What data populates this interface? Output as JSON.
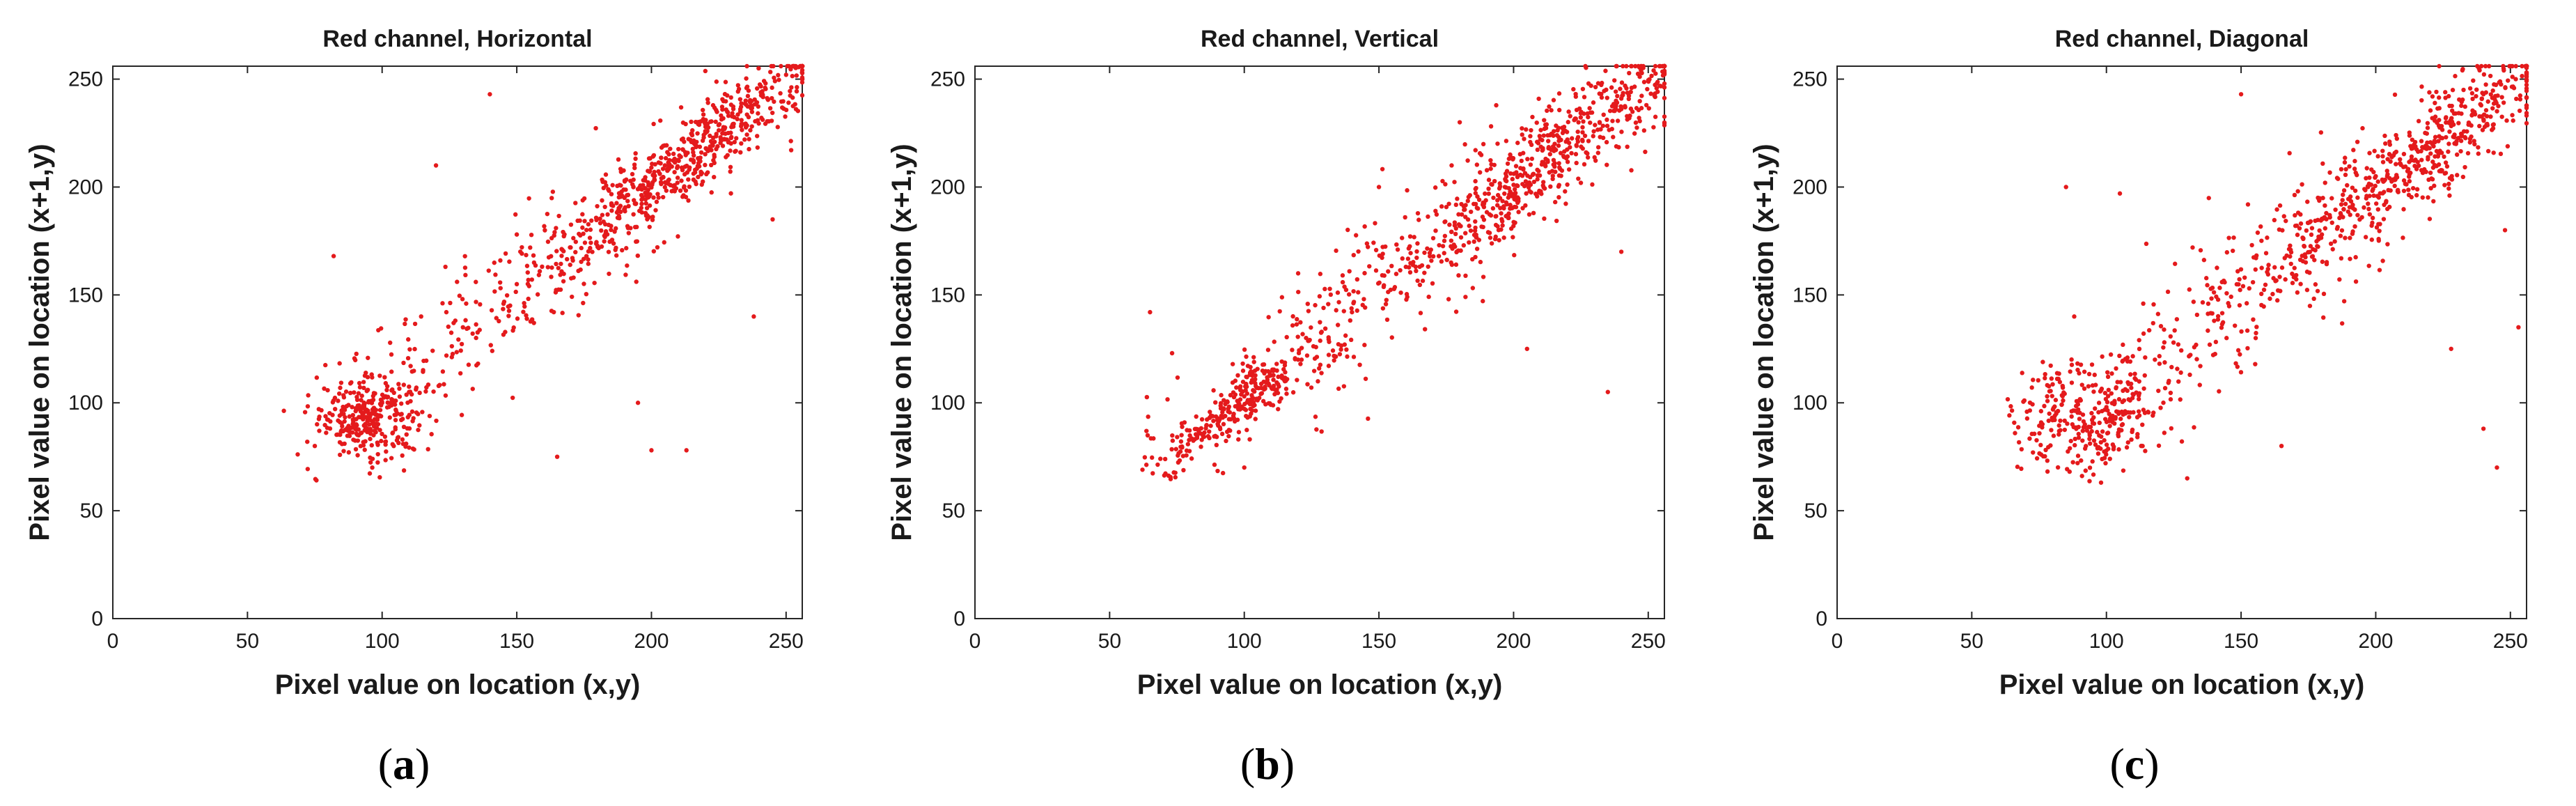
{
  "chart_data": [
    {
      "type": "scatter",
      "panel_label": "a",
      "title": "Red channel, Horizontal",
      "xlabel": "Pixel value on location (x,y)",
      "ylabel": "Pixel value on location (x+1,y)",
      "xlim": [
        0,
        256
      ],
      "ylim": [
        0,
        256
      ],
      "xticks": [
        0,
        50,
        100,
        150,
        200,
        250
      ],
      "yticks": [
        0,
        50,
        100,
        150,
        200,
        250
      ],
      "grid": false,
      "marker_color": "#e41a1c",
      "clusters": [
        {
          "center": [
            95,
            93
          ],
          "count": 260,
          "spread": 9
        },
        {
          "center": [
            160,
            160
          ],
          "count": 220,
          "spread": 28,
          "along_diagonal": true
        },
        {
          "center": [
            215,
            215
          ],
          "count": 520,
          "spread": 16,
          "along_diagonal": true
        }
      ],
      "outliers": [
        [
          82,
          168
        ],
        [
          140,
          243
        ],
        [
          150,
          178
        ],
        [
          165,
          75
        ],
        [
          200,
          78
        ],
        [
          213,
          78
        ],
        [
          238,
          140
        ],
        [
          195,
          100
        ],
        [
          120,
          210
        ],
        [
          245,
          185
        ]
      ],
      "points": [
        [
          95,
          95
        ],
        [
          100,
          100
        ],
        [
          90,
          88
        ],
        [
          110,
          105
        ],
        [
          130,
          135
        ],
        [
          150,
          155
        ],
        [
          170,
          172
        ],
        [
          190,
          195
        ],
        [
          205,
          210
        ],
        [
          220,
          225
        ],
        [
          235,
          240
        ],
        [
          250,
          252
        ],
        [
          75,
          80
        ],
        [
          85,
          95
        ],
        [
          105,
          92
        ]
      ]
    },
    {
      "type": "scatter",
      "panel_label": "b",
      "title": "Red channel, Vertical",
      "xlabel": "Pixel value on location (x,y)",
      "ylabel": "Pixel value on location (x+1,y)",
      "xlim": [
        0,
        256
      ],
      "ylim": [
        0,
        256
      ],
      "xticks": [
        0,
        50,
        100,
        150,
        200,
        250
      ],
      "yticks": [
        0,
        50,
        100,
        150,
        200,
        250
      ],
      "grid": false,
      "marker_color": "#e41a1c",
      "clusters": [
        {
          "center": [
            95,
            97
          ],
          "count": 240,
          "spread": 10,
          "along_diagonal": true
        },
        {
          "center": [
            150,
            152
          ],
          "count": 260,
          "spread": 30,
          "along_diagonal": true
        },
        {
          "center": [
            215,
            216
          ],
          "count": 500,
          "spread": 18,
          "along_diagonal": true
        }
      ],
      "outliers": [
        [
          65,
          142
        ],
        [
          150,
          200
        ],
        [
          205,
          125
        ],
        [
          235,
          105
        ],
        [
          240,
          170
        ],
        [
          180,
          230
        ],
        [
          120,
          160
        ],
        [
          100,
          70
        ]
      ],
      "points": [
        [
          90,
          92
        ],
        [
          100,
          103
        ],
        [
          120,
          120
        ],
        [
          140,
          142
        ],
        [
          160,
          163
        ],
        [
          180,
          182
        ],
        [
          200,
          201
        ],
        [
          220,
          222
        ],
        [
          240,
          241
        ],
        [
          252,
          254
        ]
      ]
    },
    {
      "type": "scatter",
      "panel_label": "c",
      "title": "Red channel, Diagonal",
      "xlabel": "Pixel value on location (x,y)",
      "ylabel": "Pixel value on location (x+1,y)",
      "xlim": [
        0,
        256
      ],
      "ylim": [
        0,
        256
      ],
      "xticks": [
        0,
        50,
        100,
        150,
        200,
        250
      ],
      "yticks": [
        0,
        50,
        100,
        150,
        200,
        250
      ],
      "grid": false,
      "marker_color": "#e41a1c",
      "clusters": [
        {
          "center": [
            95,
            95
          ],
          "count": 260,
          "spread": 13
        },
        {
          "center": [
            155,
            155
          ],
          "count": 250,
          "spread": 32,
          "along_diagonal": true
        },
        {
          "center": [
            215,
            213
          ],
          "count": 480,
          "spread": 20,
          "along_diagonal": true
        }
      ],
      "outliers": [
        [
          85,
          200
        ],
        [
          105,
          197
        ],
        [
          150,
          243
        ],
        [
          165,
          80
        ],
        [
          228,
          125
        ],
        [
          240,
          88
        ],
        [
          245,
          70
        ],
        [
          253,
          135
        ],
        [
          248,
          180
        ],
        [
          130,
          65
        ]
      ],
      "points": [
        [
          92,
          90
        ],
        [
          100,
          98
        ],
        [
          118,
          120
        ],
        [
          140,
          138
        ],
        [
          160,
          162
        ],
        [
          180,
          178
        ],
        [
          200,
          205
        ],
        [
          220,
          218
        ],
        [
          240,
          243
        ],
        [
          252,
          250
        ]
      ]
    }
  ],
  "captions": [
    {
      "open": "(",
      "letter": "a",
      "close": ")"
    },
    {
      "open": "(",
      "letter": "b",
      "close": ")"
    },
    {
      "open": "(",
      "letter": "c",
      "close": ")"
    }
  ]
}
